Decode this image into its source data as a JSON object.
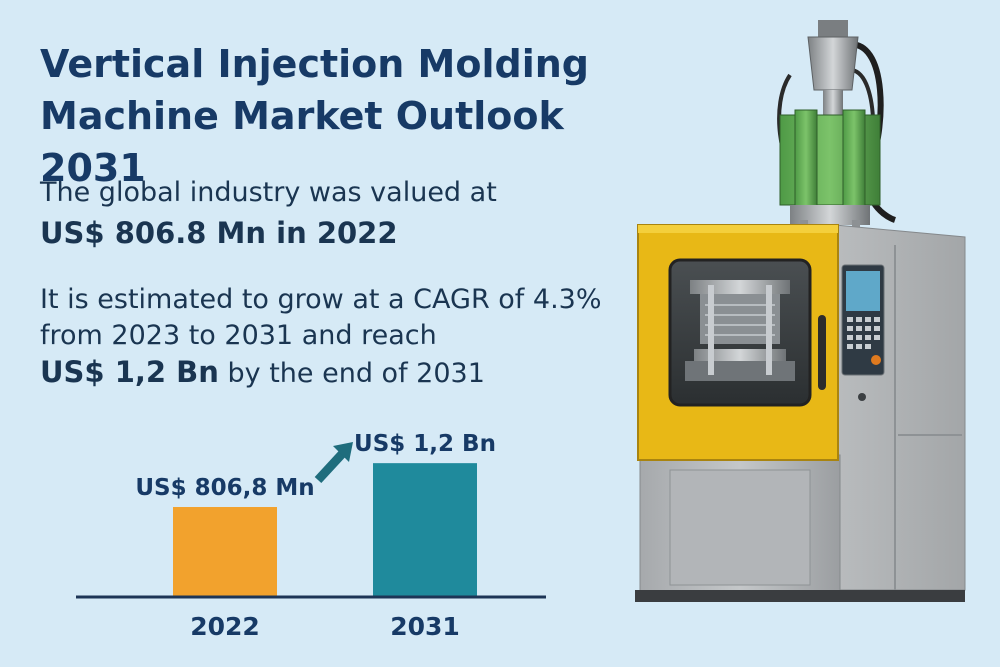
{
  "title": {
    "line1": "Vertical Injection Molding",
    "line2": "Machine Market Outlook 2031"
  },
  "summary": {
    "valued_text": "The global industry was valued at",
    "valued_amount": "US$ 806.8 Mn in 2022",
    "growth_line1": "It is estimated to grow at a CAGR of 4.3%",
    "growth_line2": "from 2023 to 2031 and reach",
    "growth_amount": "US$ 1,2 Bn",
    "growth_suffix": " by the end of 2031"
  },
  "colors": {
    "background": "#d6eaf6",
    "bar_2022": "#f2a22d",
    "bar_2031": "#1f8a9c",
    "arrow": "#1f6d7d",
    "title": "#173a66"
  },
  "chart_data": {
    "type": "bar",
    "categories": [
      "2022",
      "2031"
    ],
    "values": [
      806.8,
      1200
    ],
    "unit": "US$ Mn",
    "data_labels": [
      "US$ 806,8 Mn",
      "US$ 1,2 Bn"
    ],
    "ylim": [
      0,
      1300
    ],
    "title": "",
    "xlabel": "",
    "ylabel": "",
    "grid": false,
    "legend": "none",
    "trend_arrow": "up"
  },
  "illustration": {
    "subject": "vertical-injection-molding-machine"
  }
}
